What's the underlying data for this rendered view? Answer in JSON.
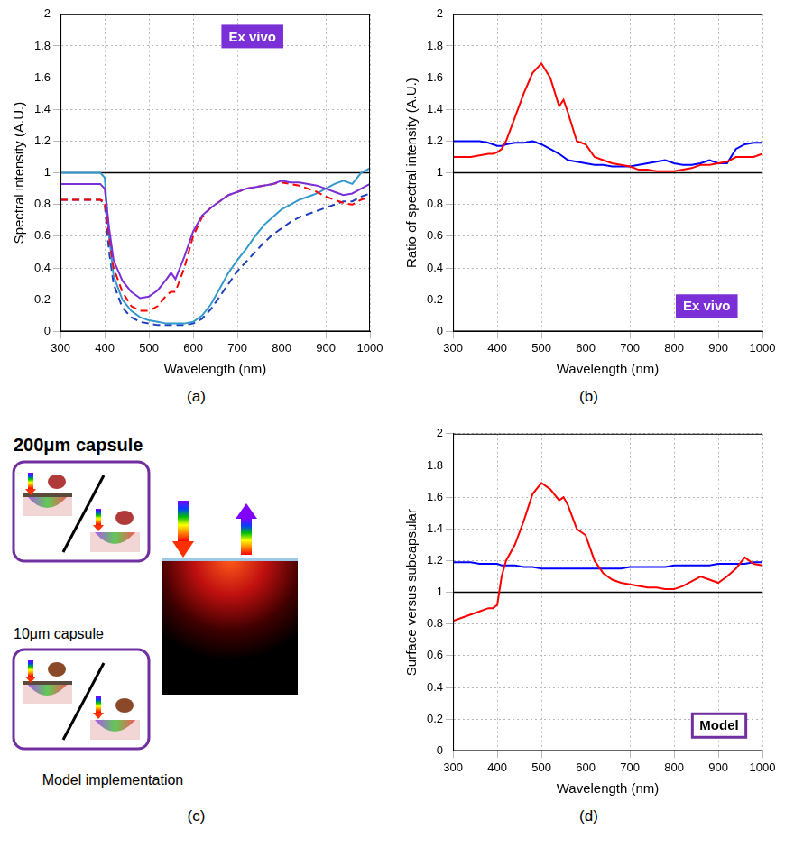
{
  "chart_data": [
    {
      "type": "line",
      "label": "(a)",
      "annotation": "Ex vivo",
      "x_label": "Wavelength (nm)",
      "y_label": "Spectral intensity (A.U.)",
      "x": [
        300,
        320,
        340,
        360,
        380,
        390,
        400,
        410,
        420,
        440,
        460,
        480,
        500,
        520,
        540,
        550,
        560,
        580,
        600,
        620,
        640,
        660,
        680,
        700,
        720,
        740,
        760,
        780,
        800,
        820,
        840,
        860,
        880,
        900,
        920,
        940,
        960,
        980,
        1000
      ],
      "xlim": [
        300,
        1000
      ],
      "xticks": [
        300,
        400,
        500,
        600,
        700,
        800,
        900,
        1000
      ],
      "ylim": [
        0,
        2
      ],
      "yticks": [
        0,
        0.2,
        0.4,
        0.6,
        0.8,
        1,
        1.2,
        1.4,
        1.6,
        1.8,
        2
      ],
      "grid": true,
      "reference_line": 1,
      "series": [
        {
          "color": "#7b2fd6",
          "line_style": "solid",
          "values": [
            0.93,
            0.93,
            0.93,
            0.93,
            0.93,
            0.93,
            0.9,
            0.65,
            0.45,
            0.32,
            0.25,
            0.21,
            0.22,
            0.26,
            0.33,
            0.37,
            0.33,
            0.47,
            0.63,
            0.73,
            0.78,
            0.82,
            0.86,
            0.88,
            0.9,
            0.91,
            0.92,
            0.93,
            0.95,
            0.94,
            0.94,
            0.93,
            0.92,
            0.9,
            0.88,
            0.86,
            0.87,
            0.9,
            0.93
          ]
        },
        {
          "color": "#ff0000",
          "line_style": "dashed",
          "values": [
            0.83,
            0.83,
            0.83,
            0.83,
            0.83,
            0.83,
            0.82,
            0.6,
            0.4,
            0.25,
            0.16,
            0.13,
            0.13,
            0.16,
            0.23,
            0.25,
            0.25,
            0.4,
            0.6,
            0.72,
            0.78,
            0.82,
            0.86,
            0.88,
            0.9,
            0.91,
            0.92,
            0.93,
            0.94,
            0.93,
            0.92,
            0.9,
            0.88,
            0.85,
            0.83,
            0.81,
            0.8,
            0.83,
            0.85
          ]
        },
        {
          "color": "#3399cc",
          "line_style": "solid",
          "values": [
            1,
            1,
            1,
            1,
            1,
            1,
            0.97,
            0.6,
            0.35,
            0.2,
            0.13,
            0.09,
            0.07,
            0.06,
            0.05,
            0.05,
            0.05,
            0.05,
            0.06,
            0.1,
            0.17,
            0.27,
            0.37,
            0.45,
            0.52,
            0.6,
            0.67,
            0.72,
            0.77,
            0.8,
            0.83,
            0.85,
            0.87,
            0.9,
            0.93,
            0.95,
            0.93,
            1,
            1.03
          ]
        },
        {
          "color": "#1f3fbf",
          "line_style": "dashed",
          "values": [
            0.83,
            0.83,
            0.83,
            0.83,
            0.83,
            0.83,
            0.8,
            0.5,
            0.3,
            0.15,
            0.09,
            0.06,
            0.05,
            0.04,
            0.04,
            0.04,
            0.04,
            0.04,
            0.05,
            0.08,
            0.14,
            0.22,
            0.3,
            0.38,
            0.44,
            0.5,
            0.56,
            0.61,
            0.65,
            0.69,
            0.72,
            0.74,
            0.76,
            0.78,
            0.8,
            0.82,
            0.82,
            0.85,
            0.87
          ]
        }
      ]
    },
    {
      "type": "line",
      "label": "(b)",
      "annotation": "Ex vivo",
      "x_label": "Wavelength (nm)",
      "y_label": "Ratio of spectral intensity (A.U.)",
      "x": [
        300,
        320,
        340,
        360,
        380,
        390,
        400,
        410,
        420,
        440,
        460,
        480,
        500,
        520,
        540,
        550,
        560,
        580,
        600,
        620,
        640,
        660,
        680,
        700,
        720,
        740,
        760,
        780,
        800,
        820,
        840,
        860,
        880,
        900,
        920,
        940,
        960,
        980,
        1000
      ],
      "xlim": [
        300,
        1000
      ],
      "xticks": [
        300,
        400,
        500,
        600,
        700,
        800,
        900,
        1000
      ],
      "ylim": [
        0,
        2
      ],
      "yticks": [
        0,
        0.2,
        0.4,
        0.6,
        0.8,
        1,
        1.2,
        1.4,
        1.6,
        1.8,
        2
      ],
      "grid": true,
      "reference_line": 1,
      "series": [
        {
          "color": "#ff0000",
          "line_style": "solid",
          "values": [
            1.1,
            1.1,
            1.1,
            1.11,
            1.12,
            1.12,
            1.13,
            1.15,
            1.2,
            1.35,
            1.5,
            1.63,
            1.69,
            1.6,
            1.42,
            1.46,
            1.38,
            1.2,
            1.18,
            1.1,
            1.08,
            1.06,
            1.05,
            1.04,
            1.02,
            1.02,
            1.01,
            1.01,
            1.01,
            1.02,
            1.03,
            1.05,
            1.05,
            1.06,
            1.07,
            1.1,
            1.1,
            1.1,
            1.12
          ]
        },
        {
          "color": "#0000ff",
          "line_style": "solid",
          "values": [
            1.2,
            1.2,
            1.2,
            1.2,
            1.19,
            1.18,
            1.17,
            1.17,
            1.18,
            1.19,
            1.19,
            1.2,
            1.18,
            1.15,
            1.12,
            1.1,
            1.08,
            1.07,
            1.06,
            1.05,
            1.05,
            1.04,
            1.04,
            1.04,
            1.05,
            1.06,
            1.07,
            1.08,
            1.06,
            1.05,
            1.05,
            1.06,
            1.08,
            1.06,
            1.06,
            1.15,
            1.18,
            1.19,
            1.19
          ]
        }
      ]
    },
    {
      "type": "line",
      "label": "(d)",
      "annotation": "Model",
      "x_label": "Wavelength (nm)",
      "y_label": "Surface versus subcapsular",
      "x": [
        300,
        320,
        340,
        360,
        380,
        390,
        400,
        410,
        420,
        440,
        460,
        480,
        500,
        520,
        540,
        550,
        560,
        580,
        600,
        620,
        640,
        660,
        680,
        700,
        720,
        740,
        760,
        780,
        800,
        820,
        840,
        860,
        880,
        900,
        920,
        940,
        960,
        980,
        1000
      ],
      "xlim": [
        300,
        1000
      ],
      "xticks": [
        300,
        400,
        500,
        600,
        700,
        800,
        900,
        1000
      ],
      "ylim": [
        0,
        2
      ],
      "yticks": [
        0,
        0.2,
        0.4,
        0.6,
        0.8,
        1,
        1.2,
        1.4,
        1.6,
        1.8,
        2
      ],
      "grid": true,
      "reference_line": 1,
      "series": [
        {
          "color": "#ff0000",
          "line_style": "solid",
          "values": [
            0.82,
            0.84,
            0.86,
            0.88,
            0.9,
            0.9,
            0.92,
            1.1,
            1.2,
            1.3,
            1.45,
            1.62,
            1.69,
            1.65,
            1.58,
            1.6,
            1.55,
            1.4,
            1.36,
            1.2,
            1.12,
            1.08,
            1.06,
            1.05,
            1.04,
            1.03,
            1.03,
            1.02,
            1.02,
            1.04,
            1.07,
            1.1,
            1.08,
            1.06,
            1.1,
            1.15,
            1.22,
            1.18,
            1.17
          ]
        },
        {
          "color": "#0000ff",
          "line_style": "solid",
          "values": [
            1.19,
            1.19,
            1.19,
            1.18,
            1.18,
            1.18,
            1.18,
            1.17,
            1.17,
            1.17,
            1.16,
            1.16,
            1.15,
            1.15,
            1.15,
            1.15,
            1.15,
            1.15,
            1.15,
            1.15,
            1.15,
            1.15,
            1.15,
            1.16,
            1.16,
            1.16,
            1.16,
            1.16,
            1.17,
            1.17,
            1.17,
            1.17,
            1.17,
            1.18,
            1.18,
            1.18,
            1.18,
            1.19,
            1.19
          ]
        }
      ]
    }
  ],
  "diagram": {
    "label": "(c)",
    "title": "Model implementation",
    "boxes": [
      {
        "caption": "200μm capsule"
      },
      {
        "caption": "10μm capsule"
      }
    ]
  }
}
